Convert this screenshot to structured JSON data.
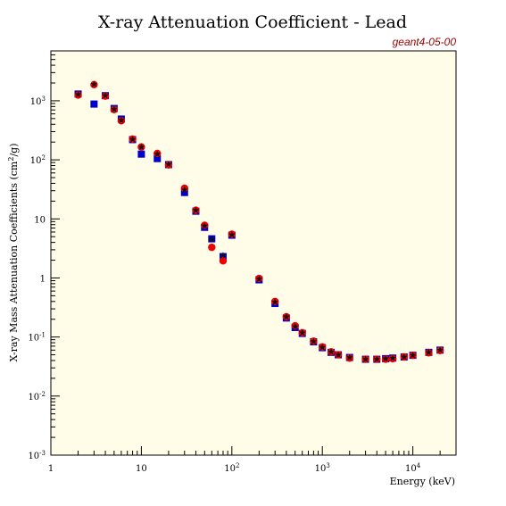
{
  "chart_data": {
    "type": "scatter",
    "title": "X-ray Attenuation Coefficient - Lead",
    "version_label": "geant4-05-00",
    "xlabel": "Energy (keV)",
    "ylabel_prefix": "X-ray Mass Attenuation Coefficients (cm",
    "ylabel_sup": "2",
    "ylabel_suffix": "/g)",
    "x_scale": "log",
    "y_scale": "log",
    "xlim": [
      1,
      30000
    ],
    "ylim": [
      0.001,
      7000
    ],
    "x_ticks": [
      {
        "value": 1,
        "base": "1",
        "exp": ""
      },
      {
        "value": 10,
        "base": "10",
        "exp": ""
      },
      {
        "value": 100,
        "base": "10",
        "exp": "2"
      },
      {
        "value": 1000,
        "base": "10",
        "exp": "3"
      },
      {
        "value": 10000,
        "base": "10",
        "exp": "4"
      }
    ],
    "y_ticks": [
      {
        "value": 0.001,
        "base": "10",
        "exp": "-3"
      },
      {
        "value": 0.01,
        "base": "10",
        "exp": "-2"
      },
      {
        "value": 0.1,
        "base": "10",
        "exp": "-1"
      },
      {
        "value": 1,
        "base": "1",
        "exp": ""
      },
      {
        "value": 10,
        "base": "10",
        "exp": ""
      },
      {
        "value": 100,
        "base": "10",
        "exp": "2"
      },
      {
        "value": 1000,
        "base": "10",
        "exp": "3"
      }
    ],
    "grid": false,
    "background": "#fffde8",
    "title_color": "#000000",
    "version_color": "#990000",
    "series": [
      {
        "marker": "square",
        "color": "#0000cc",
        "x": [
          2,
          3,
          4,
          5,
          6,
          8,
          10,
          15,
          20,
          30,
          40,
          50,
          60,
          80,
          100,
          200,
          300,
          400,
          500,
          600,
          800,
          1000,
          1250,
          1500,
          2000,
          3000,
          4000,
          5000,
          6000,
          8000,
          10000,
          15000,
          20000
        ],
        "y": [
          1300,
          880,
          1220,
          740,
          490,
          220,
          125,
          105,
          83,
          28,
          13.5,
          7.2,
          4.6,
          2.3,
          5.3,
          0.93,
          0.37,
          0.21,
          0.145,
          0.115,
          0.083,
          0.066,
          0.055,
          0.05,
          0.045,
          0.042,
          0.042,
          0.043,
          0.044,
          0.046,
          0.049,
          0.055,
          0.06
        ]
      },
      {
        "marker": "circle",
        "color": "#ee0000",
        "x": [
          2,
          3,
          4,
          5,
          6,
          8,
          10,
          15,
          20,
          30,
          40,
          50,
          60,
          80,
          100,
          200,
          300,
          400,
          500,
          600,
          800,
          1000,
          1250,
          1500,
          2000,
          3000,
          4000,
          5000,
          6000,
          8000,
          10000,
          15000,
          20000
        ],
        "y": [
          1250,
          1880,
          1200,
          710,
          460,
          225,
          165,
          128,
          82,
          33,
          14,
          7.8,
          3.3,
          1.95,
          5.5,
          0.98,
          0.4,
          0.22,
          0.155,
          0.118,
          0.085,
          0.068,
          0.056,
          0.05,
          0.044,
          0.042,
          0.042,
          0.042,
          0.043,
          0.046,
          0.049,
          0.054,
          0.059
        ]
      },
      {
        "marker": "star",
        "color": "#111111",
        "x": [
          2,
          3,
          4,
          5,
          6,
          8,
          10,
          15,
          20,
          30,
          40,
          50,
          60,
          80,
          100,
          200,
          300,
          400,
          500,
          600,
          800,
          1000,
          1250,
          1500,
          2000,
          3000,
          4000,
          5000,
          6000,
          8000,
          10000,
          15000,
          20000
        ],
        "y": [
          1280,
          1900,
          1230,
          720,
          470,
          222,
          165,
          125,
          84,
          31,
          14,
          7.6,
          4.5,
          2.4,
          5.4,
          0.96,
          0.39,
          0.22,
          0.15,
          0.118,
          0.084,
          0.067,
          0.056,
          0.05,
          0.045,
          0.042,
          0.042,
          0.043,
          0.044,
          0.046,
          0.049,
          0.055,
          0.06
        ]
      }
    ]
  }
}
